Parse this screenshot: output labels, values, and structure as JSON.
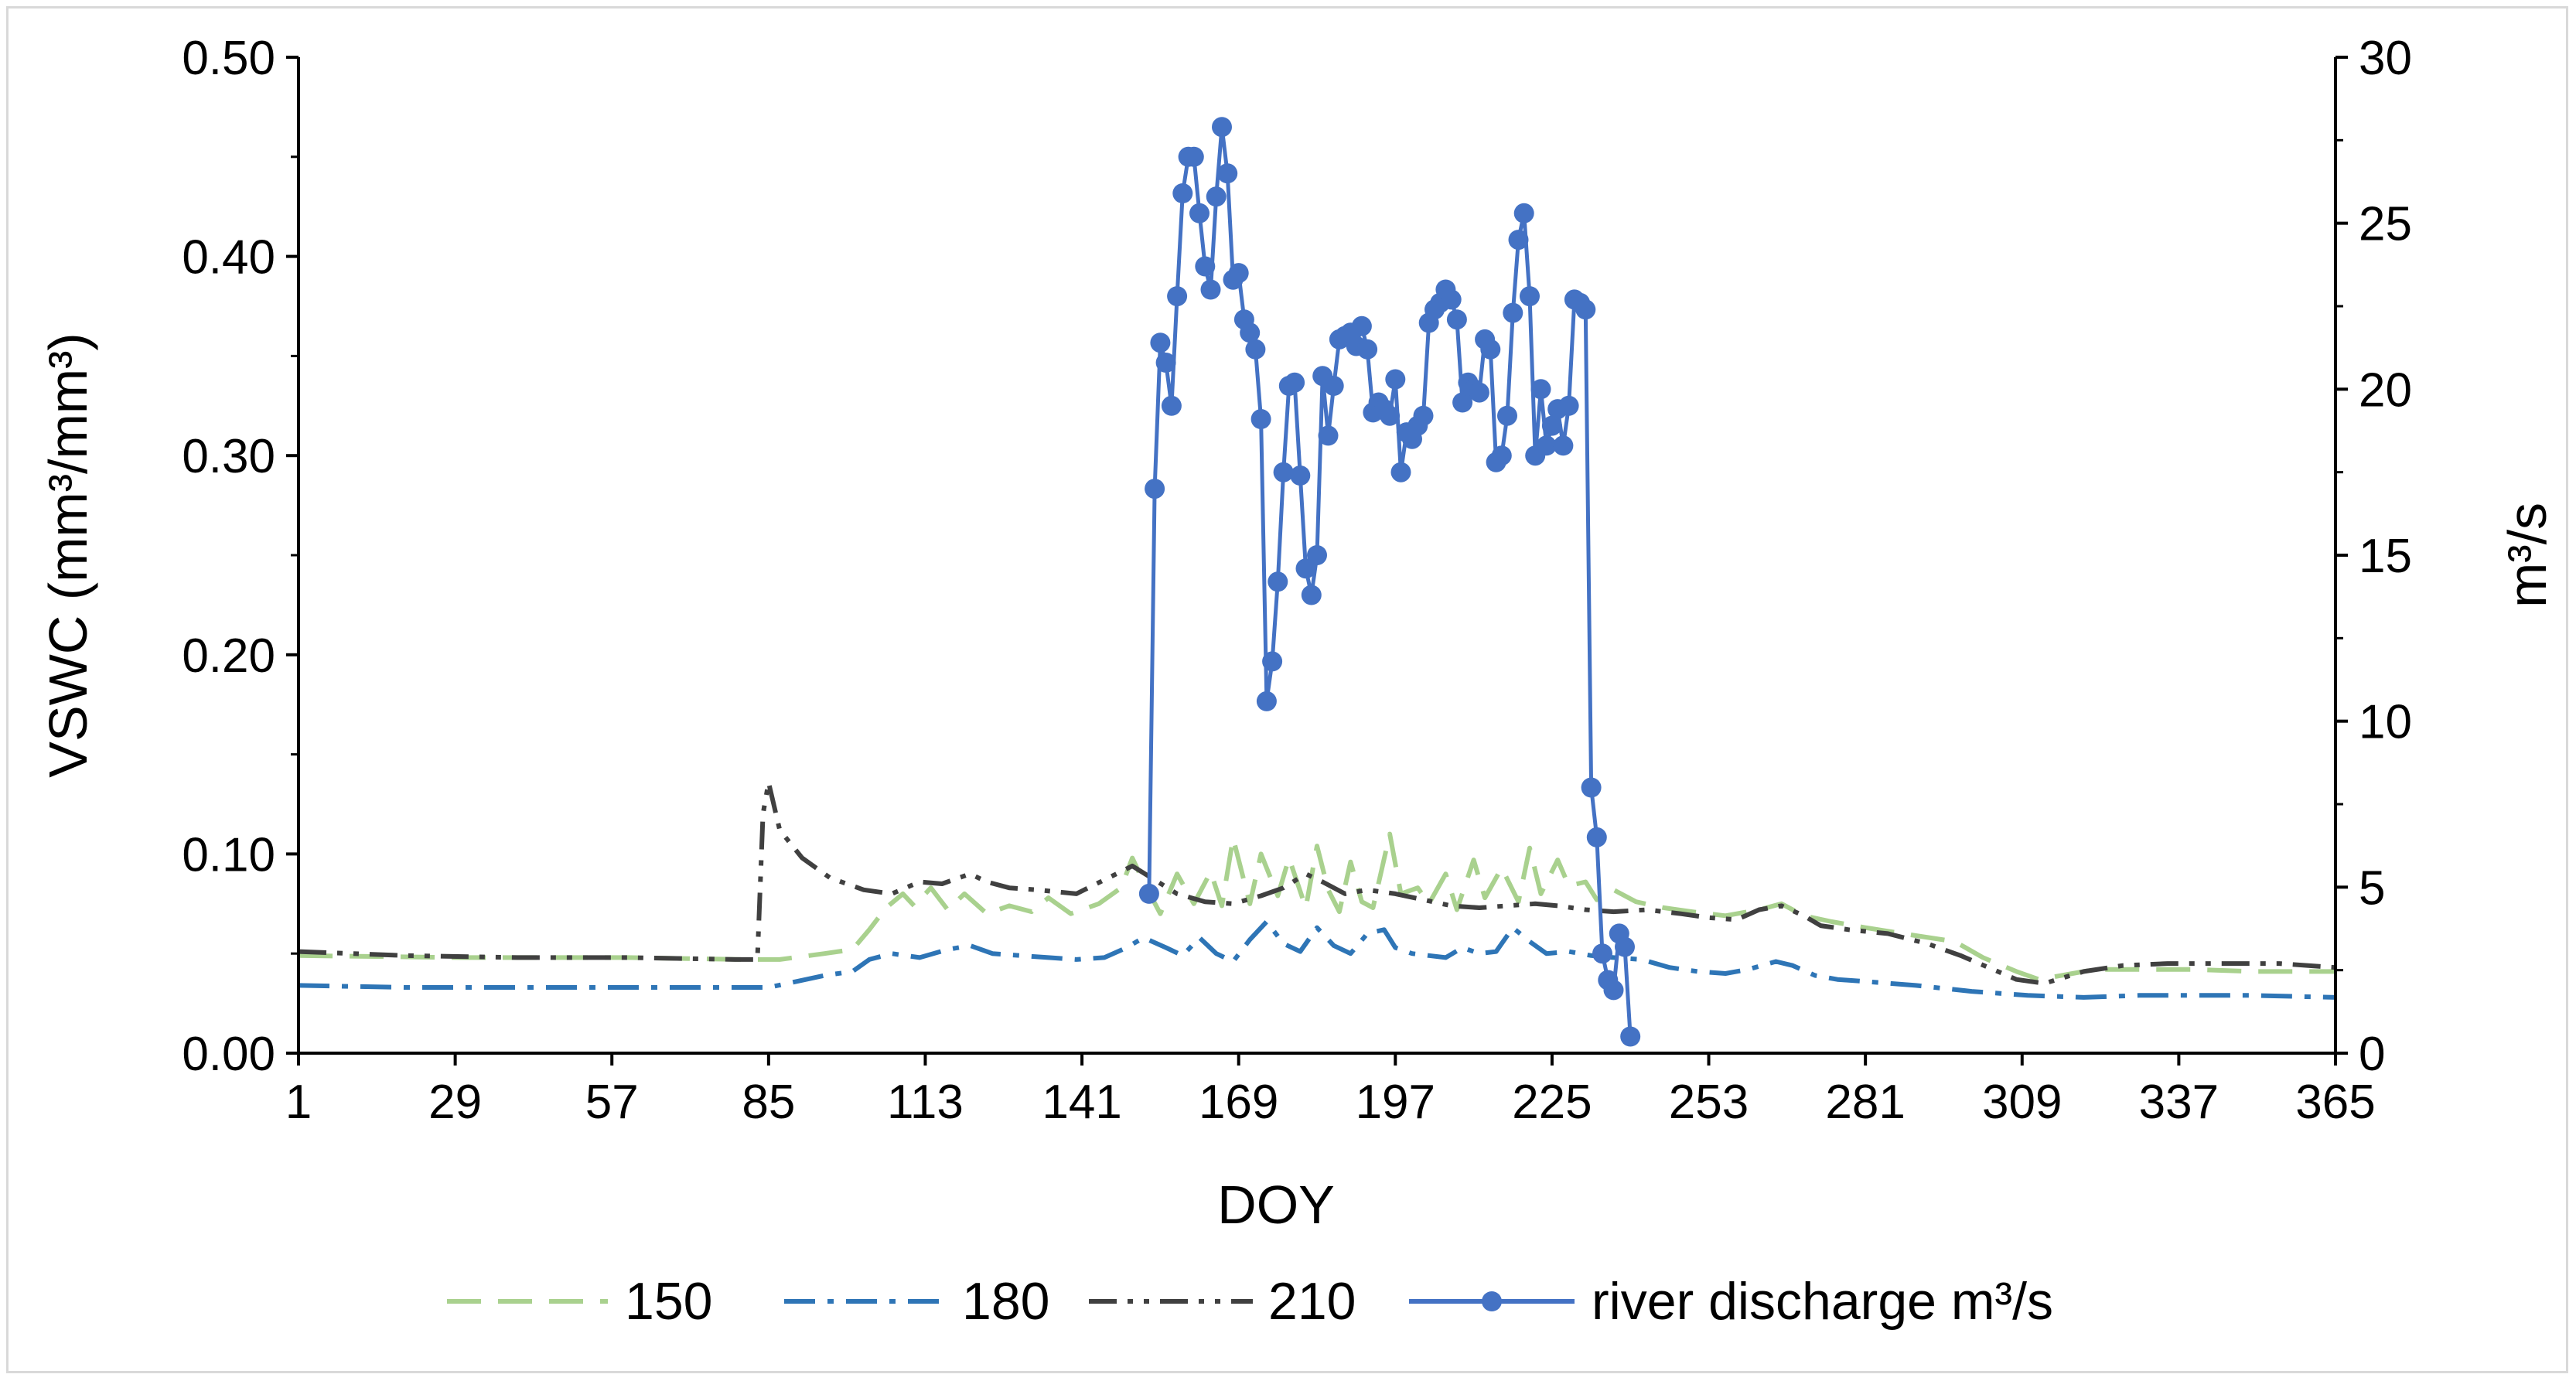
{
  "chart_data": {
    "type": "line",
    "xlabel": "DOY",
    "ylabel_left": "VSWC (mm³/mm³)",
    "ylabel_right": "m³/s",
    "xlim": [
      1,
      365
    ],
    "ylim_left": [
      0,
      0.5
    ],
    "ylim_right": [
      0,
      30
    ],
    "x_ticks": [
      "1",
      "29",
      "57",
      "85",
      "113",
      "141",
      "169",
      "197",
      "225",
      "253",
      "281",
      "309",
      "337",
      "365"
    ],
    "y_left_ticks": [
      "0.00",
      "0.10",
      "0.20",
      "0.30",
      "0.40",
      "0.50"
    ],
    "y_right_ticks": [
      "0",
      "5",
      "10",
      "15",
      "20",
      "25",
      "30"
    ],
    "grid": false,
    "legend_position": "bottom",
    "series": [
      {
        "name": "150",
        "axis": "left",
        "color": "#a9d18e",
        "style": "dash",
        "points": [
          [
            1,
            0.049
          ],
          [
            30,
            0.048
          ],
          [
            60,
            0.048
          ],
          [
            80,
            0.047
          ],
          [
            87,
            0.047
          ],
          [
            95,
            0.05
          ],
          [
            100,
            0.052
          ],
          [
            103,
            0.062
          ],
          [
            106,
            0.073
          ],
          [
            109,
            0.08
          ],
          [
            111,
            0.074
          ],
          [
            114,
            0.083
          ],
          [
            117,
            0.072
          ],
          [
            120,
            0.08
          ],
          [
            124,
            0.07
          ],
          [
            128,
            0.074
          ],
          [
            132,
            0.071
          ],
          [
            135,
            0.078
          ],
          [
            139,
            0.07
          ],
          [
            144,
            0.075
          ],
          [
            148,
            0.083
          ],
          [
            150,
            0.098
          ],
          [
            152,
            0.086
          ],
          [
            155,
            0.07
          ],
          [
            158,
            0.09
          ],
          [
            161,
            0.075
          ],
          [
            164,
            0.091
          ],
          [
            166,
            0.074
          ],
          [
            168,
            0.108
          ],
          [
            171,
            0.075
          ],
          [
            173,
            0.1
          ],
          [
            176,
            0.079
          ],
          [
            178,
            0.098
          ],
          [
            181,
            0.073
          ],
          [
            183,
            0.104
          ],
          [
            185,
            0.082
          ],
          [
            187,
            0.071
          ],
          [
            189,
            0.096
          ],
          [
            191,
            0.076
          ],
          [
            193,
            0.073
          ],
          [
            196,
            0.11
          ],
          [
            198,
            0.08
          ],
          [
            201,
            0.083
          ],
          [
            203,
            0.075
          ],
          [
            206,
            0.09
          ],
          [
            208,
            0.072
          ],
          [
            211,
            0.097
          ],
          [
            213,
            0.078
          ],
          [
            216,
            0.093
          ],
          [
            219,
            0.076
          ],
          [
            221,
            0.103
          ],
          [
            223,
            0.08
          ],
          [
            226,
            0.097
          ],
          [
            228,
            0.084
          ],
          [
            231,
            0.086
          ],
          [
            233,
            0.077
          ],
          [
            236,
            0.082
          ],
          [
            240,
            0.076
          ],
          [
            245,
            0.073
          ],
          [
            250,
            0.071
          ],
          [
            256,
            0.069
          ],
          [
            262,
            0.072
          ],
          [
            266,
            0.075
          ],
          [
            270,
            0.069
          ],
          [
            275,
            0.066
          ],
          [
            281,
            0.063
          ],
          [
            290,
            0.059
          ],
          [
            297,
            0.056
          ],
          [
            302,
            0.048
          ],
          [
            308,
            0.041
          ],
          [
            312,
            0.037
          ],
          [
            318,
            0.04
          ],
          [
            322,
            0.042
          ],
          [
            330,
            0.042
          ],
          [
            340,
            0.042
          ],
          [
            350,
            0.041
          ],
          [
            360,
            0.041
          ],
          [
            365,
            0.041
          ]
        ]
      },
      {
        "name": "180",
        "axis": "left",
        "color": "#2e75b6",
        "style": "dashdot",
        "points": [
          [
            1,
            0.034
          ],
          [
            20,
            0.033
          ],
          [
            40,
            0.033
          ],
          [
            60,
            0.033
          ],
          [
            85,
            0.033
          ],
          [
            90,
            0.036
          ],
          [
            95,
            0.039
          ],
          [
            100,
            0.041
          ],
          [
            103,
            0.047
          ],
          [
            107,
            0.05
          ],
          [
            112,
            0.048
          ],
          [
            117,
            0.052
          ],
          [
            121,
            0.054
          ],
          [
            125,
            0.05
          ],
          [
            130,
            0.049
          ],
          [
            135,
            0.048
          ],
          [
            140,
            0.047
          ],
          [
            145,
            0.048
          ],
          [
            149,
            0.053
          ],
          [
            152,
            0.058
          ],
          [
            156,
            0.053
          ],
          [
            159,
            0.049
          ],
          [
            162,
            0.058
          ],
          [
            165,
            0.05
          ],
          [
            168,
            0.046
          ],
          [
            171,
            0.057
          ],
          [
            174,
            0.066
          ],
          [
            177,
            0.055
          ],
          [
            180,
            0.051
          ],
          [
            183,
            0.063
          ],
          [
            186,
            0.054
          ],
          [
            189,
            0.05
          ],
          [
            192,
            0.06
          ],
          [
            195,
            0.062
          ],
          [
            197,
            0.053
          ],
          [
            200,
            0.05
          ],
          [
            203,
            0.049
          ],
          [
            206,
            0.048
          ],
          [
            209,
            0.053
          ],
          [
            212,
            0.05
          ],
          [
            215,
            0.051
          ],
          [
            218,
            0.063
          ],
          [
            221,
            0.056
          ],
          [
            224,
            0.05
          ],
          [
            228,
            0.051
          ],
          [
            232,
            0.049
          ],
          [
            236,
            0.048
          ],
          [
            241,
            0.047
          ],
          [
            246,
            0.043
          ],
          [
            251,
            0.041
          ],
          [
            256,
            0.04
          ],
          [
            260,
            0.042
          ],
          [
            265,
            0.046
          ],
          [
            268,
            0.044
          ],
          [
            272,
            0.039
          ],
          [
            276,
            0.037
          ],
          [
            281,
            0.036
          ],
          [
            290,
            0.034
          ],
          [
            300,
            0.031
          ],
          [
            310,
            0.029
          ],
          [
            320,
            0.028
          ],
          [
            330,
            0.029
          ],
          [
            340,
            0.029
          ],
          [
            350,
            0.029
          ],
          [
            365,
            0.028
          ]
        ]
      },
      {
        "name": "210",
        "axis": "left",
        "color": "#404040",
        "style": "dashdotdot",
        "points": [
          [
            1,
            0.051
          ],
          [
            20,
            0.049
          ],
          [
            40,
            0.048
          ],
          [
            60,
            0.048
          ],
          [
            79,
            0.047
          ],
          [
            83,
            0.047
          ],
          [
            84,
            0.12
          ],
          [
            85,
            0.136
          ],
          [
            87,
            0.112
          ],
          [
            91,
            0.098
          ],
          [
            96,
            0.088
          ],
          [
            102,
            0.082
          ],
          [
            107,
            0.08
          ],
          [
            112,
            0.086
          ],
          [
            116,
            0.085
          ],
          [
            121,
            0.09
          ],
          [
            124,
            0.086
          ],
          [
            128,
            0.083
          ],
          [
            133,
            0.082
          ],
          [
            140,
            0.08
          ],
          [
            145,
            0.087
          ],
          [
            150,
            0.094
          ],
          [
            154,
            0.087
          ],
          [
            158,
            0.08
          ],
          [
            163,
            0.076
          ],
          [
            168,
            0.075
          ],
          [
            173,
            0.079
          ],
          [
            177,
            0.083
          ],
          [
            181,
            0.09
          ],
          [
            184,
            0.086
          ],
          [
            188,
            0.08
          ],
          [
            192,
            0.082
          ],
          [
            197,
            0.08
          ],
          [
            202,
            0.077
          ],
          [
            207,
            0.074
          ],
          [
            212,
            0.073
          ],
          [
            217,
            0.074
          ],
          [
            222,
            0.075
          ],
          [
            226,
            0.074
          ],
          [
            231,
            0.072
          ],
          [
            236,
            0.071
          ],
          [
            242,
            0.072
          ],
          [
            248,
            0.07
          ],
          [
            253,
            0.068
          ],
          [
            258,
            0.067
          ],
          [
            262,
            0.072
          ],
          [
            266,
            0.074
          ],
          [
            270,
            0.069
          ],
          [
            273,
            0.064
          ],
          [
            278,
            0.062
          ],
          [
            285,
            0.06
          ],
          [
            292,
            0.055
          ],
          [
            298,
            0.049
          ],
          [
            303,
            0.043
          ],
          [
            308,
            0.037
          ],
          [
            313,
            0.035
          ],
          [
            320,
            0.041
          ],
          [
            327,
            0.044
          ],
          [
            335,
            0.045
          ],
          [
            345,
            0.045
          ],
          [
            355,
            0.045
          ],
          [
            365,
            0.043
          ]
        ]
      },
      {
        "name": "river discharge m³/s",
        "axis": "right",
        "color": "#4472c4",
        "style": "solid-markers",
        "points": [
          [
            153,
            4.8
          ],
          [
            154,
            17.0
          ],
          [
            155,
            21.4
          ],
          [
            156,
            20.8
          ],
          [
            157,
            19.5
          ],
          [
            158,
            22.8
          ],
          [
            159,
            25.9
          ],
          [
            160,
            27.0
          ],
          [
            161,
            27.0
          ],
          [
            162,
            25.3
          ],
          [
            163,
            23.7
          ],
          [
            164,
            23.0
          ],
          [
            165,
            25.8
          ],
          [
            166,
            27.9
          ],
          [
            167,
            26.5
          ],
          [
            168,
            23.3
          ],
          [
            169,
            23.5
          ],
          [
            170,
            22.1
          ],
          [
            171,
            21.7
          ],
          [
            172,
            21.2
          ],
          [
            173,
            19.1
          ],
          [
            174,
            10.6
          ],
          [
            175,
            11.8
          ],
          [
            176,
            14.2
          ],
          [
            177,
            17.5
          ],
          [
            178,
            20.1
          ],
          [
            179,
            20.2
          ],
          [
            180,
            17.4
          ],
          [
            181,
            14.6
          ],
          [
            182,
            13.8
          ],
          [
            183,
            15.0
          ],
          [
            184,
            20.4
          ],
          [
            185,
            18.6
          ],
          [
            186,
            20.1
          ],
          [
            187,
            21.5
          ],
          [
            188,
            21.6
          ],
          [
            189,
            21.7
          ],
          [
            190,
            21.3
          ],
          [
            191,
            21.9
          ],
          [
            192,
            21.2
          ],
          [
            193,
            19.3
          ],
          [
            194,
            19.6
          ],
          [
            195,
            19.4
          ],
          [
            196,
            19.2
          ],
          [
            197,
            20.3
          ],
          [
            198,
            17.5
          ],
          [
            199,
            18.7
          ],
          [
            200,
            18.5
          ],
          [
            201,
            18.9
          ],
          [
            202,
            19.2
          ],
          [
            203,
            22.0
          ],
          [
            204,
            22.4
          ],
          [
            205,
            22.6
          ],
          [
            206,
            23.0
          ],
          [
            207,
            22.7
          ],
          [
            208,
            22.1
          ],
          [
            209,
            19.6
          ],
          [
            210,
            20.2
          ],
          [
            211,
            20.0
          ],
          [
            212,
            19.9
          ],
          [
            213,
            21.5
          ],
          [
            214,
            21.2
          ],
          [
            215,
            17.8
          ],
          [
            216,
            18.0
          ],
          [
            217,
            19.2
          ],
          [
            218,
            22.3
          ],
          [
            219,
            24.5
          ],
          [
            220,
            25.3
          ],
          [
            221,
            22.8
          ],
          [
            222,
            18.0
          ],
          [
            223,
            20.0
          ],
          [
            224,
            18.3
          ],
          [
            225,
            18.9
          ],
          [
            226,
            19.4
          ],
          [
            227,
            18.3
          ],
          [
            228,
            19.5
          ],
          [
            229,
            22.7
          ],
          [
            230,
            22.6
          ],
          [
            231,
            22.4
          ],
          [
            232,
            8.0
          ],
          [
            233,
            6.5
          ],
          [
            234,
            3.0
          ],
          [
            235,
            2.2
          ],
          [
            236,
            1.9
          ],
          [
            237,
            3.6
          ],
          [
            238,
            3.2
          ],
          [
            239,
            0.5
          ]
        ]
      }
    ]
  }
}
